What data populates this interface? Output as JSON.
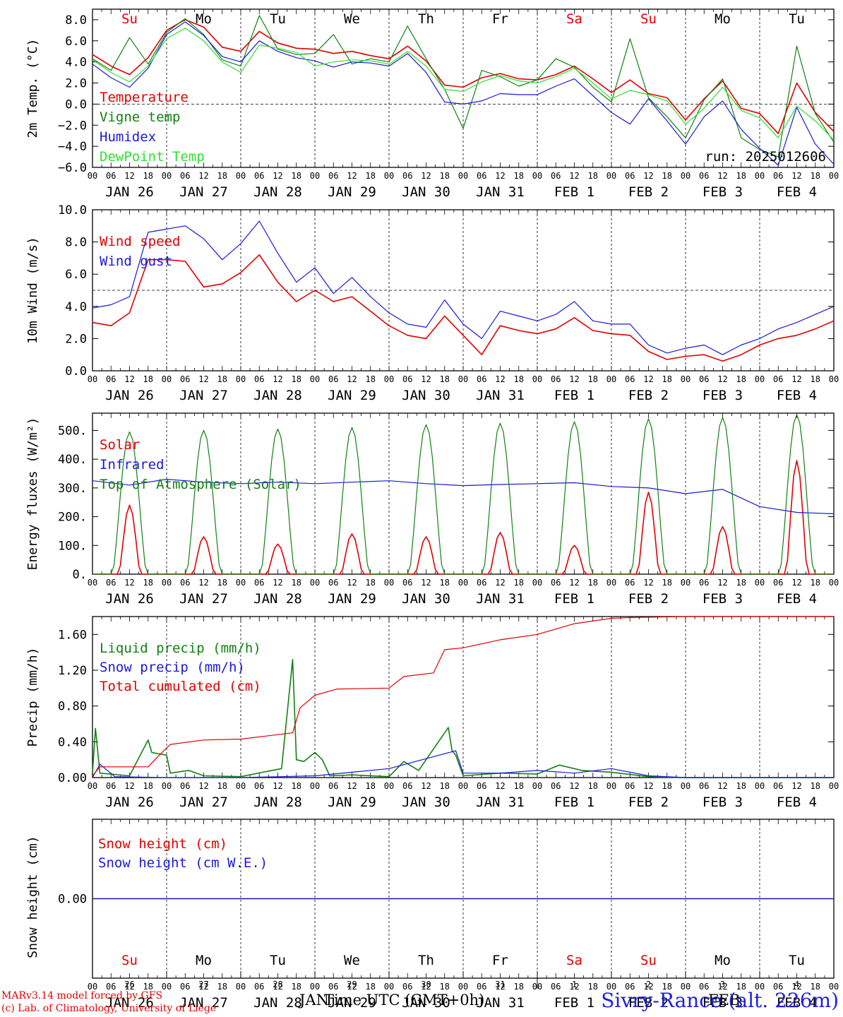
{
  "run_label": "run: 2025012606",
  "x_axis": {
    "hour_ticks": [
      "00",
      "06",
      "12",
      "18"
    ],
    "date_labels": [
      "JAN 26",
      "JAN 27",
      "JAN 28",
      "JAN 29",
      "JAN 30",
      "JAN 31",
      "FEB  1",
      "FEB  2",
      "FEB  3",
      "FEB  4"
    ],
    "weekdays": [
      "Su",
      "Mo",
      "Tu",
      "We",
      "Th",
      "Fr",
      "Sa",
      "Su",
      "Mo",
      "Tu"
    ],
    "weekday_colors": [
      "#e00000",
      "#000000",
      "#000000",
      "#000000",
      "#000000",
      "#000000",
      "#e00000",
      "#e00000",
      "#000000",
      "#000000"
    ],
    "day_numbers": [
      "26",
      "27",
      "28",
      "29",
      "30",
      "31",
      "1",
      "2",
      "3",
      "4"
    ],
    "month_labels": [
      "JAN",
      "FEB"
    ],
    "title": "Time UTC (GMT+0h)"
  },
  "footer": {
    "model_line": "MARv3.14 model forced by GFS",
    "copyright_line": "(c) Lab. of Climatology, University of Liege",
    "station": "Sivry-Rance (alt. 226m)"
  },
  "colors": {
    "red": "#e00000",
    "green": "#128012",
    "blue": "#1a1ad8",
    "light_green": "#30e030"
  },
  "chart_data": [
    {
      "type": "line",
      "ylabel": "2m Temp. (°C)",
      "ylim": [
        -6,
        9
      ],
      "yticks": [
        -6,
        -4,
        -2,
        0,
        2,
        4,
        6,
        8
      ],
      "ytick_labels": [
        "−6.0",
        "−4.0",
        "−2.0",
        "0.0",
        "2.0",
        "4.0",
        "6.0",
        "8.0"
      ],
      "reference_line": 0,
      "x_unit": "days since JAN 26 00 UTC",
      "series": [
        {
          "name": "Temperature",
          "color": "#e00000",
          "x": [
            0,
            0.25,
            0.5,
            0.75,
            1,
            1.25,
            1.5,
            1.75,
            2,
            2.25,
            2.5,
            2.75,
            3,
            3.25,
            3.5,
            3.75,
            4,
            4.25,
            4.5,
            4.75,
            5,
            5.25,
            5.5,
            5.75,
            6,
            6.25,
            6.5,
            6.75,
            7,
            7.25,
            7.5,
            7.75,
            8,
            8.25,
            8.5,
            8.75,
            9,
            9.25,
            9.5,
            9.75,
            10
          ],
          "values": [
            4.7,
            3.6,
            2.8,
            4.4,
            7.0,
            8.0,
            7.3,
            5.4,
            5.0,
            6.9,
            5.8,
            5.3,
            5.2,
            4.8,
            5.0,
            4.6,
            4.3,
            5.5,
            4.1,
            1.8,
            1.6,
            2.5,
            2.9,
            2.4,
            2.3,
            2.8,
            3.6,
            2.4,
            1.1,
            2.3,
            1.0,
            0.6,
            -1.5,
            0.5,
            2.2,
            -0.4,
            -0.9,
            -2.8,
            2.0,
            -0.8,
            -2.6
          ]
        },
        {
          "name": "Vigne temp",
          "color": "#128012",
          "x": [
            0,
            0.25,
            0.5,
            0.75,
            1,
            1.25,
            1.5,
            1.75,
            2,
            2.25,
            2.5,
            2.75,
            3,
            3.25,
            3.5,
            3.75,
            4,
            4.25,
            4.5,
            4.75,
            5,
            5.25,
            5.5,
            5.75,
            6,
            6.25,
            6.5,
            6.75,
            7,
            7.25,
            7.5,
            7.75,
            8,
            8.25,
            8.5,
            8.75,
            9,
            9.25,
            9.5,
            9.75,
            10
          ],
          "values": [
            4.3,
            3.2,
            6.3,
            3.8,
            6.8,
            8.1,
            6.6,
            4.2,
            3.6,
            8.4,
            5.2,
            4.7,
            4.8,
            6.6,
            3.8,
            4.3,
            4.0,
            7.4,
            4.3,
            1.4,
            -2.3,
            3.2,
            2.6,
            1.7,
            2.3,
            4.3,
            3.5,
            1.6,
            0.2,
            6.2,
            0.6,
            -1.2,
            -3.2,
            0.4,
            2.4,
            -3.2,
            -4.3,
            -5.0,
            5.5,
            -0.9,
            -3.6
          ]
        },
        {
          "name": "Humidex",
          "color": "#1a1ad8",
          "x": [
            0,
            0.25,
            0.5,
            0.75,
            1,
            1.25,
            1.5,
            1.75,
            2,
            2.25,
            2.5,
            2.75,
            3,
            3.25,
            3.5,
            3.75,
            4,
            4.25,
            4.5,
            4.75,
            5,
            5.25,
            5.5,
            5.75,
            6,
            6.25,
            6.5,
            6.75,
            7,
            7.25,
            7.5,
            7.75,
            8,
            8.25,
            8.5,
            8.75,
            9,
            9.25,
            9.5,
            9.75,
            10
          ],
          "values": [
            3.8,
            2.5,
            1.6,
            3.4,
            6.6,
            7.8,
            6.5,
            4.5,
            4.0,
            6.0,
            5.0,
            4.4,
            4.1,
            3.5,
            4.0,
            3.9,
            3.6,
            4.8,
            3.0,
            0.2,
            0.0,
            0.3,
            1.0,
            0.9,
            0.9,
            1.7,
            2.4,
            0.8,
            -0.8,
            -1.9,
            0.5,
            -1.6,
            -3.8,
            -1.2,
            0.3,
            -2.4,
            -4.2,
            -5.8,
            -0.3,
            -3.8,
            -5.7
          ]
        },
        {
          "name": "DewPoint Temp",
          "color": "#30e030",
          "x": [
            0,
            0.25,
            0.5,
            0.75,
            1,
            1.25,
            1.5,
            1.75,
            2,
            2.25,
            2.5,
            2.75,
            3,
            3.25,
            3.5,
            3.75,
            4,
            4.25,
            4.5,
            4.75,
            5,
            5.25,
            5.5,
            5.75,
            6,
            6.25,
            6.5,
            6.75,
            7,
            7.25,
            7.5,
            7.75,
            8,
            8.25,
            8.5,
            8.75,
            9,
            9.25,
            9.5,
            9.75,
            10
          ],
          "values": [
            4.2,
            3.0,
            2.1,
            3.6,
            6.2,
            7.2,
            6.0,
            4.0,
            3.0,
            5.6,
            5.3,
            4.9,
            3.6,
            4.0,
            4.2,
            4.1,
            3.8,
            5.0,
            3.6,
            1.4,
            1.2,
            2.1,
            2.7,
            2.2,
            2.0,
            2.6,
            3.4,
            2.0,
            0.5,
            1.3,
            0.9,
            0.3,
            -1.9,
            -0.4,
            1.6,
            -0.6,
            -1.3,
            -3.2,
            -0.2,
            -1.6,
            -3.4
          ]
        }
      ]
    },
    {
      "type": "line",
      "ylabel": "10m Wind (m/s)",
      "ylim": [
        0,
        10
      ],
      "yticks": [
        0,
        2,
        4,
        6,
        8,
        10
      ],
      "ytick_labels": [
        "0.0",
        "2.0",
        "4.0",
        "6.0",
        "8.0",
        "10.0"
      ],
      "reference_line": 5,
      "x_unit": "days since JAN 26 00 UTC",
      "series": [
        {
          "name": "Wind speed",
          "color": "#e00000",
          "x": [
            0,
            0.25,
            0.5,
            0.75,
            1,
            1.25,
            1.5,
            1.75,
            2,
            2.25,
            2.5,
            2.75,
            3,
            3.25,
            3.5,
            3.75,
            4,
            4.25,
            4.5,
            4.75,
            5,
            5.25,
            5.5,
            5.75,
            6,
            6.25,
            6.5,
            6.75,
            7,
            7.25,
            7.5,
            7.75,
            8,
            8.25,
            8.5,
            8.75,
            9,
            9.25,
            9.5,
            9.75,
            10
          ],
          "values": [
            3.0,
            2.8,
            3.6,
            6.9,
            6.9,
            6.8,
            5.2,
            5.4,
            6.1,
            7.2,
            5.5,
            4.3,
            5.0,
            4.3,
            4.6,
            3.7,
            2.8,
            2.2,
            2.0,
            3.4,
            2.2,
            1.0,
            2.8,
            2.5,
            2.3,
            2.6,
            3.3,
            2.5,
            2.3,
            2.2,
            1.2,
            0.7,
            0.9,
            1.0,
            0.6,
            1.0,
            1.6,
            2.0,
            2.2,
            2.6,
            3.1
          ]
        },
        {
          "name": "Wind gust",
          "color": "#1a1ad8",
          "x": [
            0,
            0.25,
            0.5,
            0.75,
            1,
            1.25,
            1.5,
            1.75,
            2,
            2.25,
            2.5,
            2.75,
            3,
            3.25,
            3.5,
            3.75,
            4,
            4.25,
            4.5,
            4.75,
            5,
            5.25,
            5.5,
            5.75,
            6,
            6.25,
            6.5,
            6.75,
            7,
            7.25,
            7.5,
            7.75,
            8,
            8.25,
            8.5,
            8.75,
            9,
            9.25,
            9.5,
            9.75,
            10
          ],
          "values": [
            3.9,
            4.1,
            4.6,
            8.6,
            8.8,
            9.0,
            8.2,
            6.9,
            7.9,
            9.3,
            7.3,
            5.5,
            6.4,
            4.8,
            5.8,
            4.6,
            3.6,
            2.9,
            2.7,
            4.4,
            2.9,
            2.0,
            3.7,
            3.4,
            3.1,
            3.5,
            4.3,
            3.1,
            2.9,
            2.9,
            1.6,
            1.1,
            1.4,
            1.6,
            1.0,
            1.6,
            2.0,
            2.6,
            3.0,
            3.5,
            4.0
          ]
        }
      ]
    },
    {
      "type": "line",
      "ylabel": "Energy fluxes (W/m²)",
      "ylim": [
        0,
        560
      ],
      "yticks": [
        0,
        100,
        200,
        300,
        400,
        500
      ],
      "ytick_labels": [
        "0.",
        "100.",
        "200.",
        "300.",
        "400.",
        "500."
      ],
      "x_unit": "days since JAN 26 00 UTC",
      "series": [
        {
          "name": "Solar",
          "color": "#e00000",
          "daily_peaks": [
            240,
            130,
            105,
            140,
            130,
            145,
            100,
            285,
            165,
            395
          ]
        },
        {
          "name": "Infrared",
          "color": "#1a1ad8",
          "x": [
            0,
            0.5,
            1,
            1.5,
            2,
            2.5,
            3,
            3.5,
            4,
            4.5,
            5,
            5.5,
            6,
            6.5,
            7,
            7.5,
            8,
            8.5,
            9,
            9.5,
            10
          ],
          "values": [
            325,
            310,
            330,
            320,
            315,
            320,
            315,
            320,
            325,
            315,
            308,
            312,
            315,
            318,
            305,
            300,
            280,
            295,
            235,
            215,
            210
          ]
        },
        {
          "name": "Top of Atmosphere (Solar)",
          "color": "#128012",
          "daily_peaks": [
            495,
            500,
            505,
            510,
            520,
            525,
            530,
            540,
            545,
            555
          ]
        }
      ]
    },
    {
      "type": "line",
      "ylabel": "Precip (mm/h)",
      "ylim": [
        0,
        1.8
      ],
      "yticks": [
        0,
        0.4,
        0.8,
        1.2,
        1.6
      ],
      "ytick_labels": [
        "0.00",
        "0.40",
        "0.80",
        "1.20",
        "1.60"
      ],
      "x_unit": "days since JAN 26 00 UTC",
      "series": [
        {
          "name": "Liquid precip (mm/h)",
          "color": "#128012",
          "x": [
            0,
            0.04,
            0.1,
            0.5,
            0.75,
            0.8,
            1.0,
            1.05,
            1.3,
            1.5,
            2.0,
            2.3,
            2.55,
            2.7,
            2.75,
            2.85,
            3.0,
            3.1,
            3.2,
            3.5,
            4.0,
            4.2,
            4.4,
            4.8,
            4.85,
            4.9,
            5.0,
            5.5,
            6.0,
            6.3,
            6.6,
            7.0,
            7.5,
            8.0,
            10.0
          ],
          "values": [
            0.05,
            0.55,
            0.05,
            0.02,
            0.42,
            0.28,
            0.25,
            0.05,
            0.08,
            0.02,
            0.01,
            0.06,
            0.1,
            1.32,
            0.2,
            0.18,
            0.28,
            0.2,
            0.02,
            0.03,
            0.01,
            0.18,
            0.08,
            0.56,
            0.3,
            0.25,
            0.02,
            0.05,
            0.04,
            0.14,
            0.08,
            0.06,
            0.01,
            0.0,
            0.0
          ]
        },
        {
          "name": "Snow precip (mm/h)",
          "color": "#1a1ad8",
          "x": [
            0,
            0.1,
            0.3,
            1.0,
            2.0,
            3.0,
            4.0,
            4.9,
            5.0,
            5.5,
            6.0,
            6.5,
            7.0,
            7.5,
            8.0,
            10.0
          ],
          "values": [
            0.0,
            0.15,
            0.01,
            0.0,
            0.0,
            0.02,
            0.1,
            0.3,
            0.05,
            0.05,
            0.08,
            0.05,
            0.1,
            0.02,
            0.0,
            0.0
          ]
        },
        {
          "name": "Total cumulated (cm)",
          "color": "#e00000",
          "x": [
            0,
            0.1,
            0.75,
            0.9,
            1.05,
            1.5,
            2.0,
            2.5,
            2.7,
            2.8,
            3.0,
            3.3,
            4.0,
            4.2,
            4.6,
            4.75,
            5.0,
            5.5,
            6.0,
            6.5,
            7.0,
            7.3,
            8.0,
            10.0
          ],
          "values": [
            0.02,
            0.12,
            0.12,
            0.25,
            0.37,
            0.42,
            0.43,
            0.48,
            0.5,
            0.78,
            0.92,
            0.99,
            1.0,
            1.13,
            1.17,
            1.43,
            1.45,
            1.54,
            1.6,
            1.72,
            1.78,
            1.79,
            1.8,
            1.8
          ]
        }
      ]
    },
    {
      "type": "line",
      "ylabel": "Snow height (cm)",
      "yticks": [
        0
      ],
      "ytick_labels": [
        "0.00"
      ],
      "x_unit": "days since JAN 26 00 UTC",
      "series": [
        {
          "name": "Snow height (cm)",
          "color": "#e00000",
          "x": [
            0,
            10
          ],
          "values": [
            0,
            0
          ]
        },
        {
          "name": "Snow height (cm W.E.)",
          "color": "#1a1ad8",
          "x": [
            0,
            10
          ],
          "values": [
            0,
            0
          ]
        }
      ]
    }
  ]
}
